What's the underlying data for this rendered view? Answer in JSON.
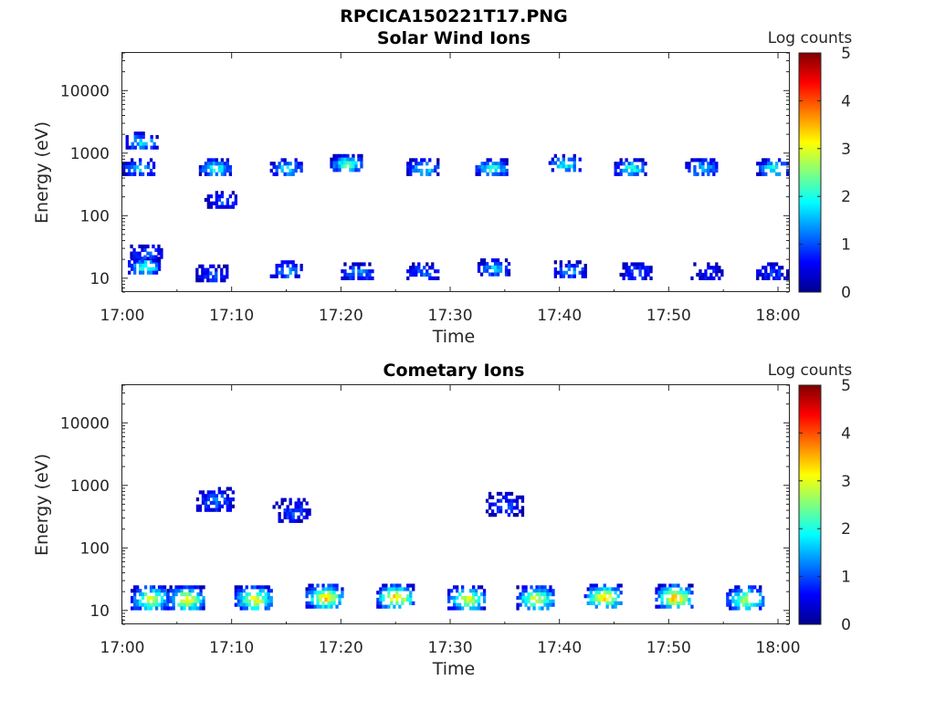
{
  "figure": {
    "main_title": "RPCICA150221T17.PNG"
  },
  "chart_data": [
    {
      "type": "heatmap",
      "title": "Solar Wind Ions",
      "xlabel": "Time",
      "ylabel": "Energy (eV)",
      "x_ticks": [
        "17:00",
        "17:10",
        "17:20",
        "17:30",
        "17:40",
        "17:50",
        "18:00"
      ],
      "xlim": [
        "17:00",
        "18:01"
      ],
      "y_scale": "log",
      "y_ticks": [
        {
          "value": 10,
          "label": "10"
        },
        {
          "value": 100,
          "label": "100"
        },
        {
          "value": 1000,
          "label": "1000"
        },
        {
          "value": 10000,
          "label": "10000"
        }
      ],
      "ylim": [
        6,
        40000
      ],
      "colorbar": {
        "label": "Log counts",
        "range": [
          0,
          5
        ],
        "ticks": [
          "0",
          "1",
          "2",
          "3",
          "4",
          "5"
        ],
        "colormap": "jet"
      },
      "scan_period_min": 6.25,
      "blobs": [
        {
          "time_min": 2.0,
          "energy_eV": 16,
          "log_counts": 2.3
        },
        {
          "time_min": 2.2,
          "energy_eV": 25,
          "log_counts": 1.2
        },
        {
          "time_min": 1.5,
          "energy_eV": 600,
          "log_counts": 1.6
        },
        {
          "time_min": 1.8,
          "energy_eV": 1600,
          "log_counts": 1.8
        },
        {
          "time_min": 8.5,
          "energy_eV": 600,
          "log_counts": 2.1
        },
        {
          "time_min": 9.0,
          "energy_eV": 180,
          "log_counts": 1.0
        },
        {
          "time_min": 8.2,
          "energy_eV": 12,
          "log_counts": 1.0
        },
        {
          "time_min": 15.0,
          "energy_eV": 600,
          "log_counts": 1.9
        },
        {
          "time_min": 15.0,
          "energy_eV": 14,
          "log_counts": 1.5
        },
        {
          "time_min": 20.5,
          "energy_eV": 700,
          "log_counts": 2.4
        },
        {
          "time_min": 21.5,
          "energy_eV": 13,
          "log_counts": 1.4
        },
        {
          "time_min": 27.5,
          "energy_eV": 600,
          "log_counts": 1.9
        },
        {
          "time_min": 27.5,
          "energy_eV": 13,
          "log_counts": 1.2
        },
        {
          "time_min": 33.8,
          "energy_eV": 600,
          "log_counts": 2.2
        },
        {
          "time_min": 34.0,
          "energy_eV": 15,
          "log_counts": 1.6
        },
        {
          "time_min": 40.5,
          "energy_eV": 700,
          "log_counts": 2.0
        },
        {
          "time_min": 41.0,
          "energy_eV": 14,
          "log_counts": 1.4
        },
        {
          "time_min": 46.5,
          "energy_eV": 600,
          "log_counts": 2.1
        },
        {
          "time_min": 47.0,
          "energy_eV": 13,
          "log_counts": 1.1
        },
        {
          "time_min": 53.0,
          "energy_eV": 600,
          "log_counts": 1.8
        },
        {
          "time_min": 53.5,
          "energy_eV": 13,
          "log_counts": 0.8
        },
        {
          "time_min": 59.5,
          "energy_eV": 600,
          "log_counts": 2.0
        },
        {
          "time_min": 59.5,
          "energy_eV": 13,
          "log_counts": 1.0
        }
      ]
    },
    {
      "type": "heatmap",
      "title": "Cometary Ions",
      "xlabel": "Time",
      "ylabel": "Energy (eV)",
      "x_ticks": [
        "17:00",
        "17:10",
        "17:20",
        "17:30",
        "17:40",
        "17:50",
        "18:00"
      ],
      "xlim": [
        "17:00",
        "18:01"
      ],
      "y_scale": "log",
      "y_ticks": [
        {
          "value": 10,
          "label": "10"
        },
        {
          "value": 100,
          "label": "100"
        },
        {
          "value": 1000,
          "label": "1000"
        },
        {
          "value": 10000,
          "label": "10000"
        }
      ],
      "ylim": [
        6,
        40000
      ],
      "colorbar": {
        "label": "Log counts",
        "range": [
          0,
          5
        ],
        "ticks": [
          "0",
          "1",
          "2",
          "3",
          "4",
          "5"
        ],
        "colormap": "jet"
      },
      "scan_period_min": 3.2,
      "blobs": [
        {
          "time_min": 2.5,
          "energy_eV": 16,
          "log_counts": 3.0
        },
        {
          "time_min": 5.8,
          "energy_eV": 16,
          "log_counts": 3.1
        },
        {
          "time_min": 12.0,
          "energy_eV": 16,
          "log_counts": 3.1
        },
        {
          "time_min": 18.5,
          "energy_eV": 17,
          "log_counts": 3.3
        },
        {
          "time_min": 25.0,
          "energy_eV": 17,
          "log_counts": 3.4
        },
        {
          "time_min": 31.5,
          "energy_eV": 16,
          "log_counts": 3.0
        },
        {
          "time_min": 37.8,
          "energy_eV": 16,
          "log_counts": 3.0
        },
        {
          "time_min": 44.0,
          "energy_eV": 17,
          "log_counts": 3.3
        },
        {
          "time_min": 50.5,
          "energy_eV": 17,
          "log_counts": 3.5
        },
        {
          "time_min": 57.0,
          "energy_eV": 16,
          "log_counts": 2.9
        },
        {
          "time_min": 8.5,
          "energy_eV": 600,
          "log_counts": 1.2
        },
        {
          "time_min": 15.5,
          "energy_eV": 400,
          "log_counts": 1.0
        },
        {
          "time_min": 35.0,
          "energy_eV": 500,
          "log_counts": 1.0
        }
      ]
    }
  ]
}
